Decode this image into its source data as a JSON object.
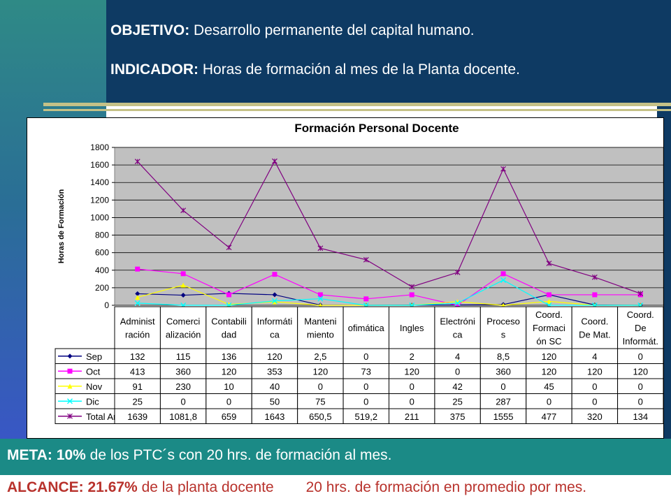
{
  "header": {
    "objetivo_label": "OBJETIVO:",
    "objetivo_text": "Desarrollo permanente del capital humano.",
    "indicador_label": "INDICADOR:",
    "indicador_text": "Horas de formación al mes de la Planta docente."
  },
  "footer": {
    "meta_label": "META: 10%",
    "meta_text": "de los PTC´s con 20 hrs. de formación al mes.",
    "alcance_label": "ALCANCE:",
    "alcance_pct": "21.67%",
    "alcance_text": "de la planta docente",
    "alcance_note": "20 hrs. de formación en promedio por mes."
  },
  "colors": {
    "Sep": "#000080",
    "Oct": "#ff00ff",
    "Nov": "#ffff00",
    "Dic": "#00ffff",
    "Total Anual": "#800080",
    "plot_bg": "#c0c0c0"
  },
  "chart_data": {
    "type": "line",
    "title": "Formación Personal Docente",
    "ylabel": "Horas de Formación",
    "ylim": [
      0,
      1800
    ],
    "yticks": [
      "0",
      "200",
      "400",
      "600",
      "800",
      "1000",
      "1200",
      "1400",
      "1600",
      "1800"
    ],
    "categories": [
      [
        "Administ",
        "ración"
      ],
      [
        "Comerci",
        "alización"
      ],
      [
        "Contabili",
        "dad"
      ],
      [
        "Informáti",
        "ca"
      ],
      [
        "Manteni",
        "miento"
      ],
      [
        "ofimática"
      ],
      [
        "Ingles"
      ],
      [
        "Electróni",
        "ca"
      ],
      [
        "Proceso",
        "s"
      ],
      [
        "Coord.",
        "Formaci",
        "ón SC"
      ],
      [
        "Coord.",
        "De Mat."
      ],
      [
        "Coord.",
        "De",
        "Informát."
      ]
    ],
    "series": [
      {
        "name": "Sep",
        "marker": "diamond",
        "values": [
          132,
          115,
          136,
          120,
          2.5,
          0,
          2,
          4,
          8.5,
          120,
          4,
          0
        ],
        "labels": [
          "132",
          "115",
          "136",
          "120",
          "2,5",
          "0",
          "2",
          "4",
          "8,5",
          "120",
          "4",
          "0"
        ]
      },
      {
        "name": "Oct",
        "marker": "square",
        "values": [
          413,
          360,
          120,
          353,
          120,
          73,
          120,
          0,
          360,
          120,
          120,
          120
        ],
        "labels": [
          "413",
          "360",
          "120",
          "353",
          "120",
          "73",
          "120",
          "0",
          "360",
          "120",
          "120",
          "120"
        ]
      },
      {
        "name": "Nov",
        "marker": "triangle",
        "values": [
          91,
          230,
          10,
          40,
          0,
          0,
          0,
          42,
          0,
          45,
          0,
          0
        ],
        "labels": [
          "91",
          "230",
          "10",
          "40",
          "0",
          "0",
          "0",
          "42",
          "0",
          "45",
          "0",
          "0"
        ]
      },
      {
        "name": "Dic",
        "marker": "x",
        "values": [
          25,
          0,
          0,
          50,
          75,
          0,
          0,
          25,
          287,
          0,
          0,
          0
        ],
        "labels": [
          "25",
          "0",
          "0",
          "50",
          "75",
          "0",
          "0",
          "25",
          "287",
          "0",
          "0",
          "0"
        ]
      },
      {
        "name": "Total Anual",
        "marker": "star",
        "values": [
          1639,
          1081.8,
          659,
          1643,
          650.5,
          519.2,
          211,
          375,
          1555,
          477,
          320,
          134
        ],
        "labels": [
          "1639",
          "1081,8",
          "659",
          "1643",
          "650,5",
          "519,2",
          "211",
          "375",
          "1555",
          "477",
          "320",
          "134"
        ]
      }
    ]
  }
}
